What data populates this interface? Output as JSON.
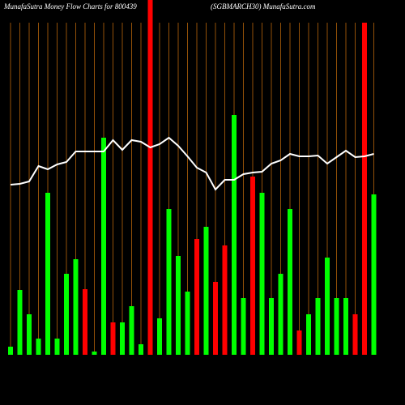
{
  "chart_data": {
    "type": "bar",
    "title": "MunafaSutra  Money Flow  Charts for 800439",
    "subtitle": "(SGBMARCH30) MunafaSutra.com",
    "categories": [
      null,
      null,
      null,
      null,
      null,
      null,
      null,
      null,
      null,
      null,
      null,
      null,
      null,
      null,
      null,
      null,
      null,
      null,
      null,
      null,
      null,
      null,
      null,
      null,
      null,
      null,
      null,
      null,
      null,
      null,
      null,
      null,
      null,
      null,
      null,
      null,
      null,
      null,
      null,
      null
    ],
    "values": [
      10,
      80,
      50,
      20,
      200,
      20,
      100,
      118,
      81,
      4,
      268,
      40,
      40,
      60,
      13,
      438,
      45,
      180,
      122,
      78,
      143,
      158,
      90,
      135,
      296,
      70,
      220,
      200,
      70,
      100,
      180,
      30,
      50,
      70,
      120,
      70,
      70,
      50,
      410,
      198
    ],
    "colors": [
      "#00ff00",
      "#00ff00",
      "#00ff00",
      "#00ff00",
      "#00ff00",
      "#00ff00",
      "#00ff00",
      "#00ff00",
      "#ff0000",
      "#00ff00",
      "#00ff00",
      "#ff0000",
      "#00ff00",
      "#00ff00",
      "#00ff00",
      "#ff0000",
      "#00ff00",
      "#00ff00",
      "#00ff00",
      "#00ff00",
      "#ff0000",
      "#00ff00",
      "#ff0000",
      "#ff0000",
      "#00ff00",
      "#00ff00",
      "#ff0000",
      "#00ff00",
      "#00ff00",
      "#00ff00",
      "#00ff00",
      "#ff0000",
      "#00ff00",
      "#00ff00",
      "#00ff00",
      "#00ff00",
      "#00ff00",
      "#ff0000",
      "#ff0000",
      "#00ff00"
    ],
    "line_values": [
      210,
      211,
      214,
      233,
      229,
      235,
      238,
      251,
      251,
      251,
      251,
      265,
      253,
      265,
      263,
      256,
      260,
      268,
      258,
      245,
      231,
      225,
      204,
      216,
      216,
      223,
      225,
      226,
      236,
      240,
      248,
      245,
      245,
      246,
      236,
      244,
      252,
      244,
      245,
      248
    ],
    "line_color": "#ffffff",
    "grid_color": "#b8640a",
    "ylim": [
      0,
      438
    ]
  }
}
